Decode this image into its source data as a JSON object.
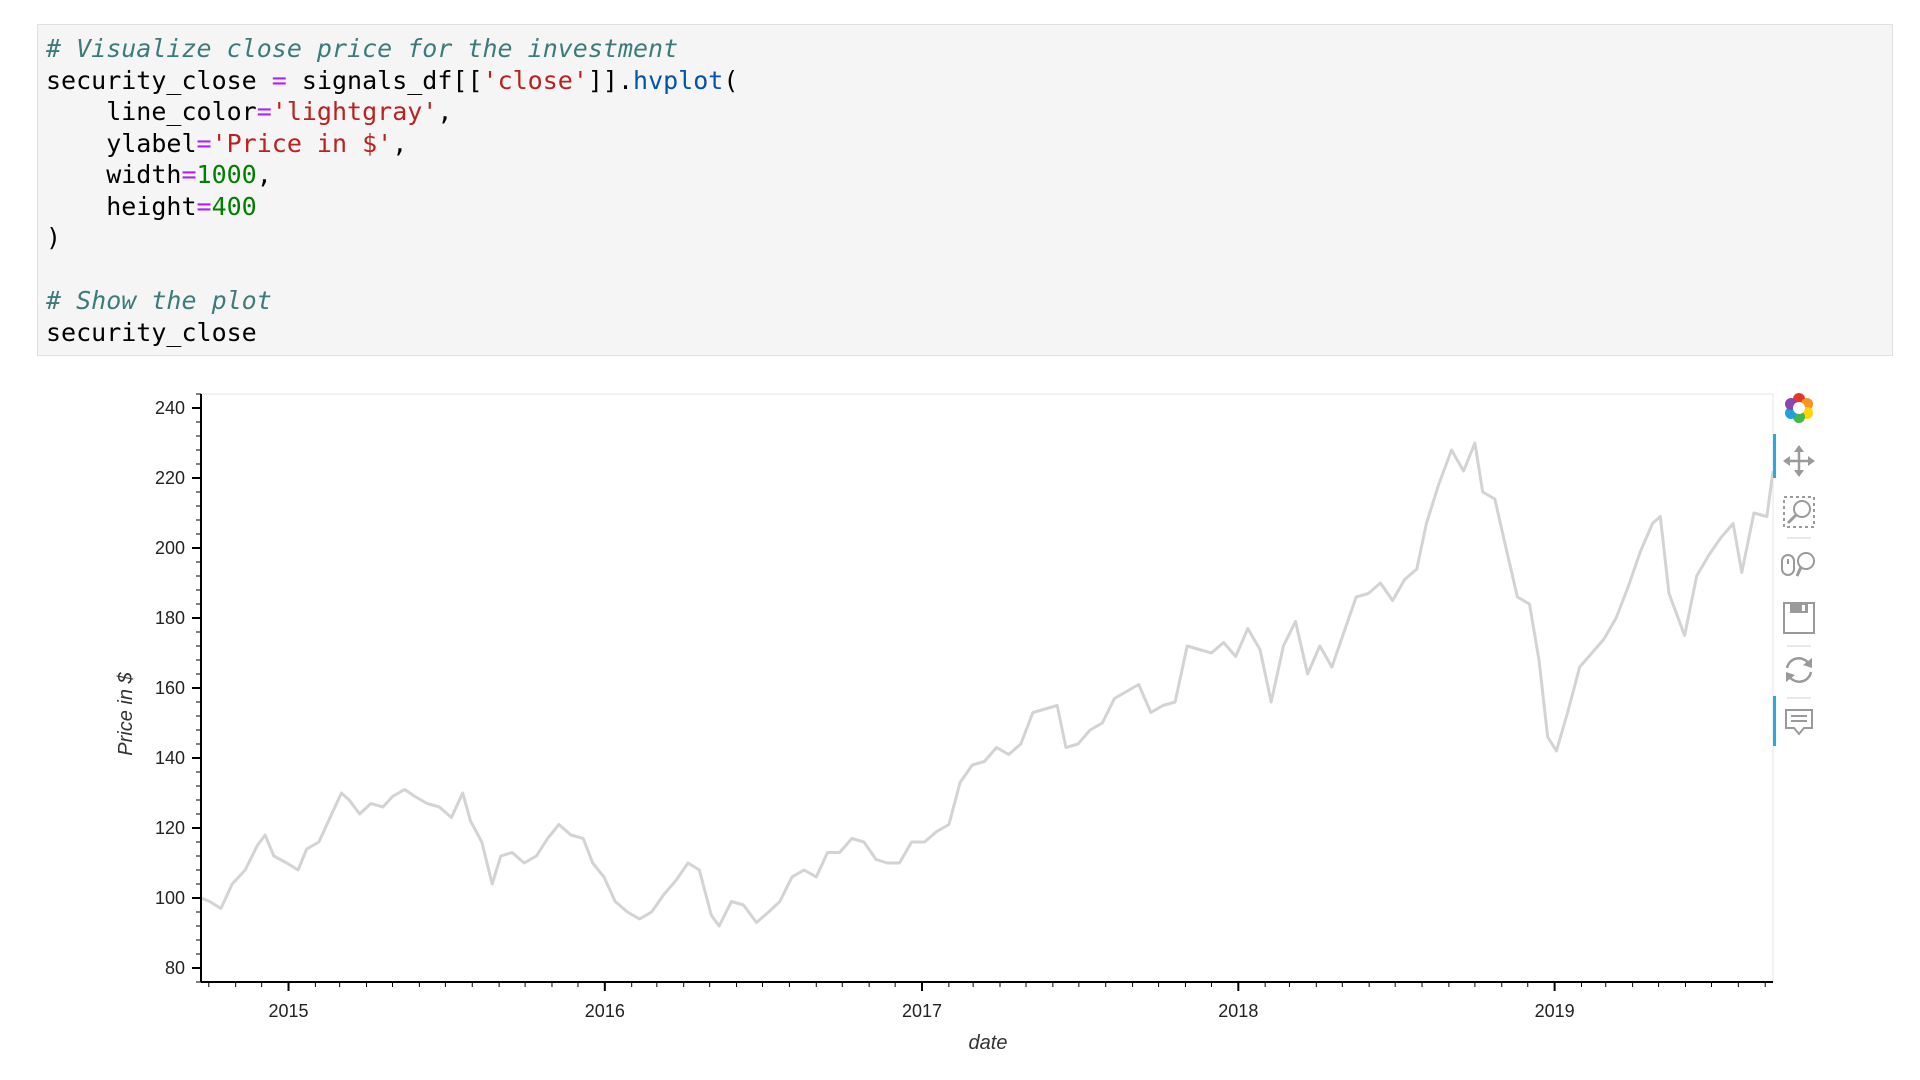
{
  "code_cell": {
    "lines": [
      [
        {
          "t": "# Visualize close price for the investment",
          "c": "comment"
        }
      ],
      [
        {
          "t": "security_close ",
          "c": ""
        },
        {
          "t": "=",
          "c": "op"
        },
        {
          "t": " signals_df[[",
          "c": ""
        },
        {
          "t": "'close'",
          "c": "str"
        },
        {
          "t": "]].",
          "c": ""
        },
        {
          "t": "hvplot",
          "c": "func"
        },
        {
          "t": "(",
          "c": ""
        }
      ],
      [
        {
          "t": "    line_color",
          "c": ""
        },
        {
          "t": "=",
          "c": "op"
        },
        {
          "t": "'lightgray'",
          "c": "str"
        },
        {
          "t": ",",
          "c": ""
        }
      ],
      [
        {
          "t": "    ylabel",
          "c": ""
        },
        {
          "t": "=",
          "c": "op"
        },
        {
          "t": "'Price in $'",
          "c": "str"
        },
        {
          "t": ",",
          "c": ""
        }
      ],
      [
        {
          "t": "    width",
          "c": ""
        },
        {
          "t": "=",
          "c": "op"
        },
        {
          "t": "1000",
          "c": "num"
        },
        {
          "t": ",",
          "c": ""
        }
      ],
      [
        {
          "t": "    height",
          "c": ""
        },
        {
          "t": "=",
          "c": "op"
        },
        {
          "t": "400",
          "c": "num"
        }
      ],
      [
        {
          "t": ")",
          "c": ""
        }
      ],
      [
        {
          "t": "",
          "c": ""
        }
      ],
      [
        {
          "t": "# Show the plot",
          "c": "comment"
        }
      ],
      [
        {
          "t": "security_close",
          "c": ""
        }
      ]
    ]
  },
  "chart_data": {
    "type": "line",
    "title": "",
    "xlabel": "date",
    "ylabel": "Price in $",
    "line_color": "#d3d3d3",
    "x_tick_labels": [
      "2015",
      "2016",
      "2017",
      "2018",
      "2019"
    ],
    "y_tick_labels": [
      "80",
      "100",
      "120",
      "140",
      "160",
      "180",
      "200",
      "220",
      "240"
    ],
    "xlim": [
      "2014-09-22",
      "2019-09-10"
    ],
    "ylim": [
      76,
      244
    ],
    "grid": false,
    "series": [
      {
        "values": [
          [
            "2014-09-22",
            100
          ],
          [
            "2014-10-02",
            99
          ],
          [
            "2014-10-15",
            97
          ],
          [
            "2014-10-28",
            104
          ],
          [
            "2014-11-12",
            108
          ],
          [
            "2014-11-26",
            115
          ],
          [
            "2014-12-05",
            118
          ],
          [
            "2014-12-15",
            112
          ],
          [
            "2014-12-30",
            110
          ],
          [
            "2015-01-12",
            108
          ],
          [
            "2015-01-22",
            114
          ],
          [
            "2015-02-05",
            116
          ],
          [
            "2015-02-18",
            123
          ],
          [
            "2015-03-03",
            130
          ],
          [
            "2015-03-12",
            128
          ],
          [
            "2015-03-24",
            124
          ],
          [
            "2015-04-06",
            127
          ],
          [
            "2015-04-20",
            126
          ],
          [
            "2015-05-01",
            129
          ],
          [
            "2015-05-15",
            131
          ],
          [
            "2015-05-27",
            129
          ],
          [
            "2015-06-10",
            127
          ],
          [
            "2015-06-24",
            126
          ],
          [
            "2015-07-08",
            123
          ],
          [
            "2015-07-21",
            130
          ],
          [
            "2015-07-30",
            122
          ],
          [
            "2015-08-12",
            116
          ],
          [
            "2015-08-24",
            104
          ],
          [
            "2015-09-03",
            112
          ],
          [
            "2015-09-16",
            113
          ],
          [
            "2015-09-30",
            110
          ],
          [
            "2015-10-14",
            112
          ],
          [
            "2015-10-27",
            117
          ],
          [
            "2015-11-09",
            121
          ],
          [
            "2015-11-23",
            118
          ],
          [
            "2015-12-07",
            117
          ],
          [
            "2015-12-18",
            110
          ],
          [
            "2015-12-31",
            106
          ],
          [
            "2016-01-13",
            99
          ],
          [
            "2016-01-27",
            96
          ],
          [
            "2016-02-10",
            94
          ],
          [
            "2016-02-24",
            96
          ],
          [
            "2016-03-09",
            101
          ],
          [
            "2016-03-23",
            105
          ],
          [
            "2016-04-06",
            110
          ],
          [
            "2016-04-19",
            108
          ],
          [
            "2016-05-03",
            95
          ],
          [
            "2016-05-12",
            92
          ],
          [
            "2016-05-26",
            99
          ],
          [
            "2016-06-09",
            98
          ],
          [
            "2016-06-24",
            93
          ],
          [
            "2016-07-08",
            96
          ],
          [
            "2016-07-21",
            99
          ],
          [
            "2016-08-04",
            106
          ],
          [
            "2016-08-18",
            108
          ],
          [
            "2016-09-01",
            106
          ],
          [
            "2016-09-14",
            113
          ],
          [
            "2016-09-28",
            113
          ],
          [
            "2016-10-12",
            117
          ],
          [
            "2016-10-26",
            116
          ],
          [
            "2016-11-09",
            111
          ],
          [
            "2016-11-22",
            110
          ],
          [
            "2016-12-06",
            110
          ],
          [
            "2016-12-20",
            116
          ],
          [
            "2017-01-04",
            116
          ],
          [
            "2017-01-18",
            119
          ],
          [
            "2017-02-01",
            121
          ],
          [
            "2017-02-14",
            133
          ],
          [
            "2017-02-28",
            138
          ],
          [
            "2017-03-14",
            139
          ],
          [
            "2017-03-28",
            143
          ],
          [
            "2017-04-11",
            141
          ],
          [
            "2017-04-25",
            144
          ],
          [
            "2017-05-09",
            153
          ],
          [
            "2017-05-23",
            154
          ],
          [
            "2017-06-06",
            155
          ],
          [
            "2017-06-16",
            143
          ],
          [
            "2017-06-30",
            144
          ],
          [
            "2017-07-14",
            148
          ],
          [
            "2017-07-28",
            150
          ],
          [
            "2017-08-11",
            157
          ],
          [
            "2017-08-25",
            159
          ],
          [
            "2017-09-08",
            161
          ],
          [
            "2017-09-22",
            153
          ],
          [
            "2017-10-06",
            155
          ],
          [
            "2017-10-20",
            156
          ],
          [
            "2017-11-03",
            172
          ],
          [
            "2017-11-17",
            171
          ],
          [
            "2017-12-01",
            170
          ],
          [
            "2017-12-15",
            173
          ],
          [
            "2017-12-29",
            169
          ],
          [
            "2018-01-12",
            177
          ],
          [
            "2018-01-26",
            171
          ],
          [
            "2018-02-08",
            156
          ],
          [
            "2018-02-22",
            172
          ],
          [
            "2018-03-08",
            179
          ],
          [
            "2018-03-22",
            164
          ],
          [
            "2018-04-05",
            172
          ],
          [
            "2018-04-19",
            166
          ],
          [
            "2018-05-03",
            176
          ],
          [
            "2018-05-17",
            186
          ],
          [
            "2018-05-31",
            187
          ],
          [
            "2018-06-14",
            190
          ],
          [
            "2018-06-28",
            185
          ],
          [
            "2018-07-12",
            191
          ],
          [
            "2018-07-26",
            194
          ],
          [
            "2018-08-06",
            207
          ],
          [
            "2018-08-20",
            218
          ],
          [
            "2018-09-04",
            228
          ],
          [
            "2018-09-18",
            222
          ],
          [
            "2018-10-01",
            230
          ],
          [
            "2018-10-10",
            216
          ],
          [
            "2018-10-24",
            214
          ],
          [
            "2018-11-05",
            201
          ],
          [
            "2018-11-19",
            186
          ],
          [
            "2018-12-03",
            184
          ],
          [
            "2018-12-14",
            168
          ],
          [
            "2018-12-24",
            146
          ],
          [
            "2019-01-03",
            142
          ],
          [
            "2019-01-16",
            153
          ],
          [
            "2019-01-30",
            166
          ],
          [
            "2019-02-13",
            170
          ],
          [
            "2019-02-27",
            174
          ],
          [
            "2019-03-13",
            180
          ],
          [
            "2019-03-27",
            189
          ],
          [
            "2019-04-10",
            199
          ],
          [
            "2019-04-24",
            207
          ],
          [
            "2019-05-03",
            209
          ],
          [
            "2019-05-13",
            187
          ],
          [
            "2019-05-31",
            175
          ],
          [
            "2019-06-14",
            192
          ],
          [
            "2019-06-28",
            198
          ],
          [
            "2019-07-12",
            203
          ],
          [
            "2019-07-26",
            207
          ],
          [
            "2019-08-05",
            193
          ],
          [
            "2019-08-19",
            210
          ],
          [
            "2019-09-03",
            209
          ],
          [
            "2019-09-10",
            222
          ]
        ]
      }
    ]
  },
  "toolbar": {
    "tools": [
      {
        "name": "bokeh-logo-icon",
        "active": false
      },
      {
        "name": "pan-tool-icon",
        "active": true
      },
      {
        "name": "box-zoom-tool-icon",
        "active": false
      },
      {
        "name": "wheel-zoom-tool-icon",
        "active": false
      },
      {
        "name": "save-tool-icon",
        "active": false
      },
      {
        "name": "reset-tool-icon",
        "active": false
      },
      {
        "name": "hover-tool-icon",
        "active": true
      }
    ],
    "active_color": "#26aae1",
    "icon_color": "#a0a0a0"
  }
}
